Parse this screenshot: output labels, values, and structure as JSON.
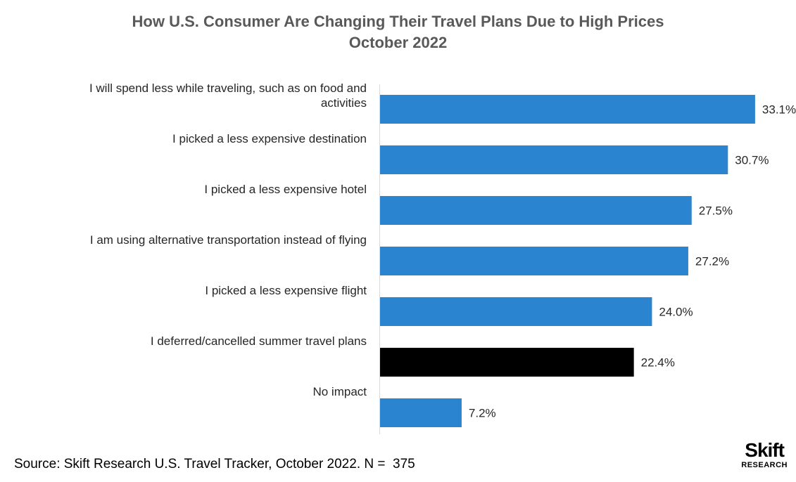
{
  "chart_data": {
    "type": "bar",
    "orientation": "horizontal",
    "title": "How U.S. Consumer Are Changing Their Travel Plans Due to High Prices",
    "subtitle": "October 2022",
    "categories": [
      "I will spend less while traveling, such as on food and activities",
      "I picked a less expensive destination",
      "I picked a less expensive hotel",
      "I am using alternative transportation instead of flying",
      "I picked a less expensive flight",
      "I deferred/cancelled summer travel plans",
      "No impact"
    ],
    "category_lines": [
      [
        "I will spend less while traveling, such as on food and",
        "activities"
      ],
      [
        "I picked a less expensive destination"
      ],
      [
        "I picked a less expensive hotel"
      ],
      [
        "I am using alternative transportation instead of flying"
      ],
      [
        "I picked a less expensive flight"
      ],
      [
        "I deferred/cancelled summer travel plans"
      ],
      [
        "No impact"
      ]
    ],
    "values": [
      33.1,
      30.7,
      27.5,
      27.2,
      24.0,
      22.4,
      7.2
    ],
    "value_labels": [
      "33.1%",
      "30.7%",
      "27.5%",
      "27.2%",
      "24.0%",
      "22.4%",
      "7.2%"
    ],
    "bar_colors": [
      "#2b84d0",
      "#2b84d0",
      "#2b84d0",
      "#2b84d0",
      "#2b84d0",
      "#000000",
      "#2b84d0"
    ],
    "xlim": [
      0,
      35
    ],
    "xlabel": "",
    "ylabel": "",
    "grid": false,
    "legend": "none"
  },
  "footer": {
    "source": "Source: Skift Research U.S. Travel Tracker, October 2022. N =  375"
  },
  "logo": {
    "main": "Skift",
    "sub": "RESEARCH"
  }
}
